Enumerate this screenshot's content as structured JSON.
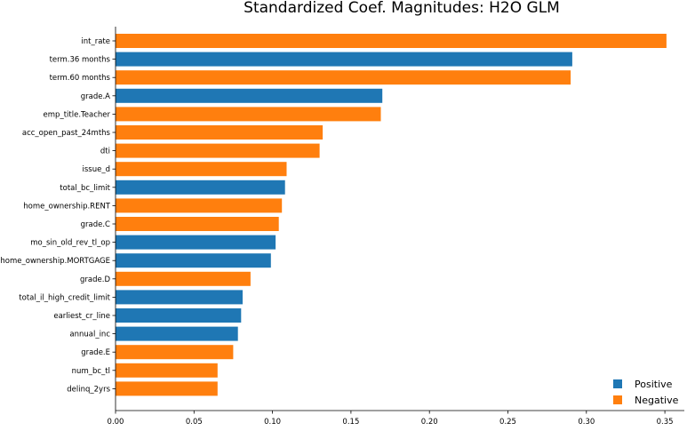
{
  "chart_data": {
    "type": "bar",
    "orientation": "horizontal",
    "title": "Standardized Coef. Magnitudes: H2O GLM",
    "xlabel": "",
    "ylabel": "",
    "xlim": [
      0,
      0.36
    ],
    "x_ticks": [
      0.0,
      0.05,
      0.1,
      0.15,
      0.2,
      0.25,
      0.3,
      0.35
    ],
    "x_tick_labels": [
      "0.00",
      "0.05",
      "0.10",
      "0.15",
      "0.20",
      "0.25",
      "0.30",
      "0.35"
    ],
    "grid": false,
    "legend_position": "bottom-right",
    "colors": {
      "Positive": "#1f77b4",
      "Negative": "#ff7f0e"
    },
    "legend": [
      {
        "name": "Positive",
        "color": "#1f77b4"
      },
      {
        "name": "Negative",
        "color": "#ff7f0e"
      }
    ],
    "categories": [
      "int_rate",
      "term.36 months",
      "term.60 months",
      "grade.A",
      "emp_title.Teacher",
      "acc_open_past_24mths",
      "dti",
      "issue_d",
      "total_bc_limit",
      "home_ownership.RENT",
      "grade.C",
      "mo_sin_old_rev_tl_op",
      "home_ownership.MORTGAGE",
      "grade.D",
      "total_il_high_credit_limit",
      "earliest_cr_line",
      "annual_inc",
      "grade.E",
      "num_bc_tl",
      "delinq_2yrs"
    ],
    "values": [
      0.351,
      0.291,
      0.29,
      0.17,
      0.169,
      0.132,
      0.13,
      0.109,
      0.108,
      0.106,
      0.104,
      0.102,
      0.099,
      0.086,
      0.081,
      0.08,
      0.078,
      0.075,
      0.065,
      0.065
    ],
    "signs": [
      "Negative",
      "Positive",
      "Negative",
      "Positive",
      "Negative",
      "Negative",
      "Negative",
      "Negative",
      "Positive",
      "Negative",
      "Negative",
      "Positive",
      "Positive",
      "Negative",
      "Positive",
      "Positive",
      "Positive",
      "Negative",
      "Negative",
      "Negative"
    ]
  }
}
